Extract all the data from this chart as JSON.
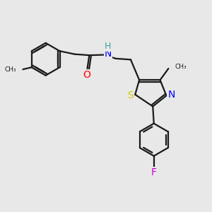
{
  "bg_color": "#e8e8e8",
  "bond_color": "#1a1a1a",
  "bond_width": 1.6,
  "atom_colors": {
    "O": "#ff0000",
    "N": "#0000ff",
    "H": "#40a0a0",
    "S": "#cccc00",
    "F": "#cc00cc",
    "C": "#1a1a1a"
  },
  "font_size_atom": 9
}
